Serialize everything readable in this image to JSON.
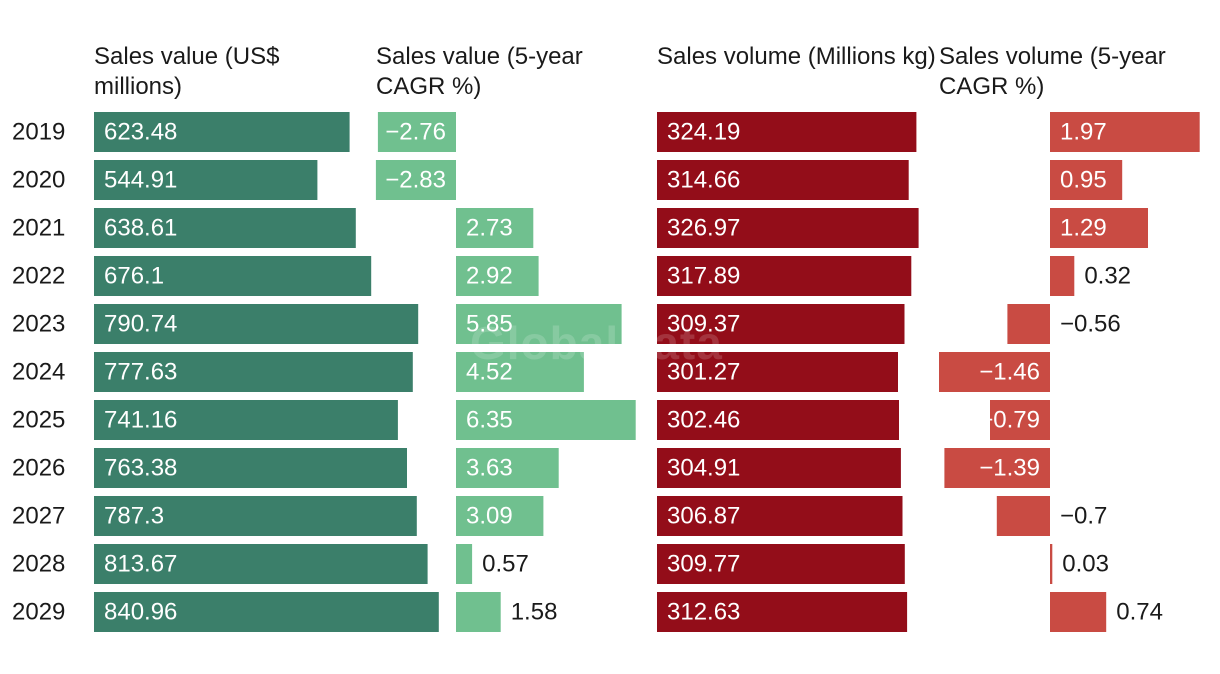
{
  "colors": {
    "sales_value": "#3b7f6a",
    "sales_value_cagr": "#70c08f",
    "sales_volume": "#930d19",
    "sales_volume_cagr": "#c94b43"
  },
  "watermark": "GlobalData",
  "chart_data": {
    "type": "bar",
    "orientation": "horizontal",
    "categories": [
      "2019",
      "2020",
      "2021",
      "2022",
      "2023",
      "2024",
      "2025",
      "2026",
      "2027",
      "2028",
      "2029"
    ],
    "series": [
      {
        "name": "Sales value (US$ millions)",
        "values": [
          623.48,
          544.91,
          638.61,
          676.1,
          790.74,
          777.63,
          741.16,
          763.38,
          787.3,
          813.67,
          840.96
        ]
      },
      {
        "name": "Sales value (5-year CAGR %)",
        "values": [
          -2.76,
          -2.83,
          2.73,
          2.92,
          5.85,
          4.52,
          6.35,
          3.63,
          3.09,
          0.57,
          1.58
        ]
      },
      {
        "name": "Sales volume (Millions kg)",
        "values": [
          324.19,
          314.66,
          326.97,
          317.89,
          309.37,
          301.27,
          302.46,
          304.91,
          306.87,
          309.77,
          312.63
        ]
      },
      {
        "name": "Sales volume (5-year CAGR %)",
        "values": [
          1.97,
          0.95,
          1.29,
          0.32,
          -0.56,
          -1.46,
          -0.79,
          -1.39,
          -0.7,
          0.03,
          0.74
        ]
      }
    ]
  }
}
